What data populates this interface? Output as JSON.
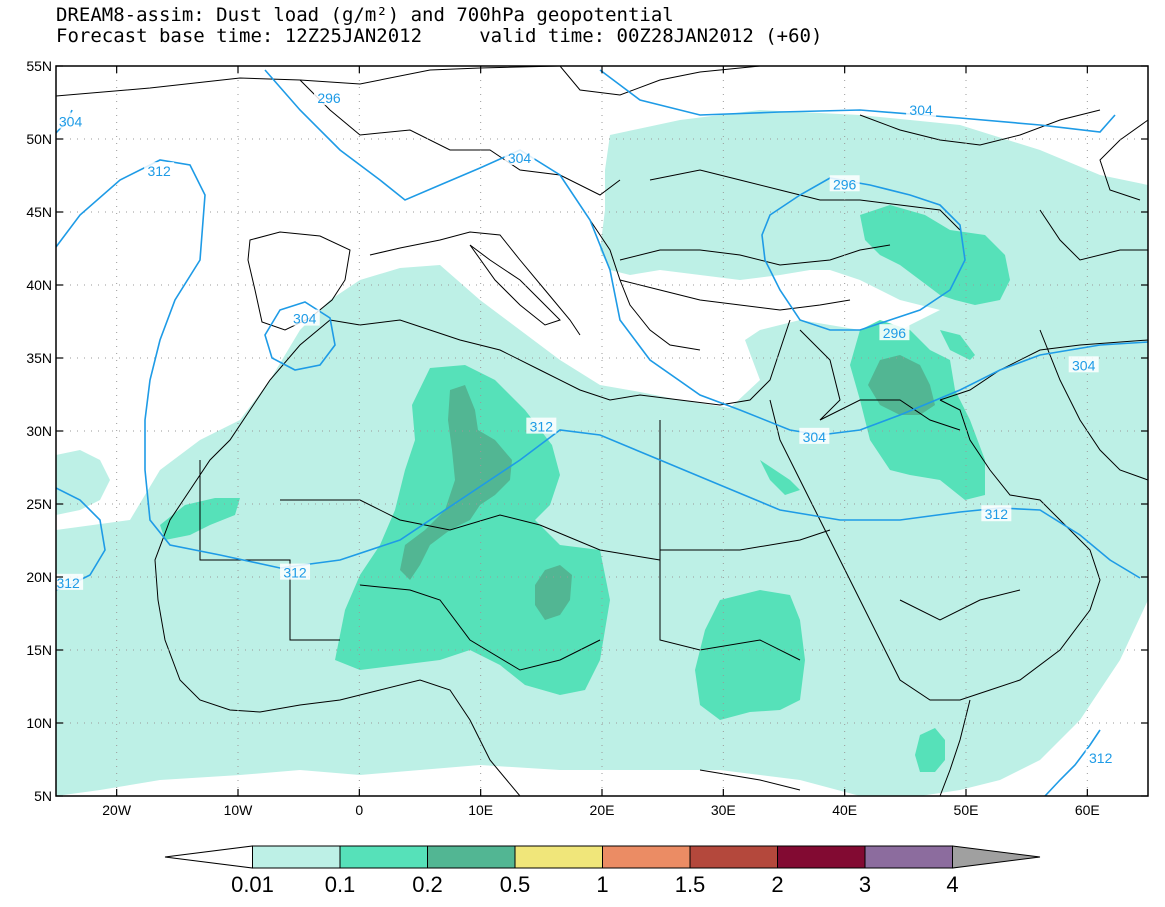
{
  "title": {
    "line1": "DREAM8-assim: Dust load (g/m²) and 700hPa geopotential",
    "line2": "Forecast base time: 12Z25JAN2012     valid time: 00Z28JAN2012 (+60)"
  },
  "map": {
    "lon_range": [
      -25,
      65
    ],
    "lat_range": [
      5,
      55
    ],
    "x_ticks": [
      {
        "value": -20,
        "label": "20W"
      },
      {
        "value": -10,
        "label": "10W"
      },
      {
        "value": 0,
        "label": "0"
      },
      {
        "value": 10,
        "label": "10E"
      },
      {
        "value": 20,
        "label": "20E"
      },
      {
        "value": 30,
        "label": "30E"
      },
      {
        "value": 40,
        "label": "40E"
      },
      {
        "value": 50,
        "label": "50E"
      },
      {
        "value": 60,
        "label": "60E"
      }
    ],
    "y_ticks": [
      {
        "value": 55,
        "label": "55N"
      },
      {
        "value": 50,
        "label": "50N"
      },
      {
        "value": 45,
        "label": "45N"
      },
      {
        "value": 40,
        "label": "40N"
      },
      {
        "value": 35,
        "label": "35N"
      },
      {
        "value": 30,
        "label": "30N"
      },
      {
        "value": 25,
        "label": "25N"
      },
      {
        "value": 20,
        "label": "20N"
      },
      {
        "value": 15,
        "label": "15N"
      },
      {
        "value": 10,
        "label": "10N"
      },
      {
        "value": 5,
        "label": "5N"
      }
    ],
    "grid": "dotted",
    "contour_color": "#1e9be6",
    "contour_labels": [
      {
        "text": "296",
        "lon": -2.5,
        "lat": 52.8
      },
      {
        "text": "304",
        "lon": -23.8,
        "lat": 51.2
      },
      {
        "text": "312",
        "lon": -16.5,
        "lat": 47.8
      },
      {
        "text": "304",
        "lon": 13.2,
        "lat": 48.7
      },
      {
        "text": "304",
        "lon": 46.3,
        "lat": 52.0
      },
      {
        "text": "296",
        "lon": 40.0,
        "lat": 46.9
      },
      {
        "text": "304",
        "lon": -4.5,
        "lat": 37.7
      },
      {
        "text": "296",
        "lon": 44.1,
        "lat": 36.7
      },
      {
        "text": "304",
        "lon": 59.7,
        "lat": 34.5
      },
      {
        "text": "312",
        "lon": 15.0,
        "lat": 30.3
      },
      {
        "text": "304",
        "lon": 37.5,
        "lat": 29.6
      },
      {
        "text": "312",
        "lon": -5.3,
        "lat": 20.3
      },
      {
        "text": "312",
        "lon": 52.5,
        "lat": 24.3
      },
      {
        "text": "312",
        "lon": -24.0,
        "lat": 19.6
      },
      {
        "text": "312",
        "lon": 61.1,
        "lat": 7.6
      }
    ]
  },
  "legend": {
    "labels": [
      "0.01",
      "0.1",
      "0.2",
      "0.5",
      "1",
      "1.5",
      "2",
      "3",
      "4"
    ],
    "colors": [
      "#bdf0e6",
      "#56e1b9",
      "#52b693",
      "#f0e67a",
      "#eb8c64",
      "#b4483c",
      "#820a32",
      "#8c6c9e",
      "#a0a0a0"
    ],
    "below_color": "#ffffff"
  }
}
